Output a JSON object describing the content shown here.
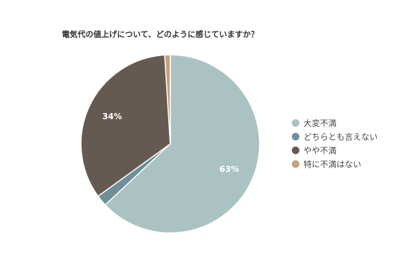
{
  "chart_data": {
    "type": "pie",
    "title": "電気代の値上げについて、どのように感じていますか？",
    "series": [
      {
        "name": "",
        "values": [
          {
            "label": "大変不満",
            "value": 63,
            "color": "#aac2c2",
            "data_label": "63%"
          },
          {
            "label": "どちらとも言えない",
            "value": 2,
            "color": "#6e8f98",
            "data_label": ""
          },
          {
            "label": "やや不満",
            "value": 34,
            "color": "#655a51",
            "data_label": "34%"
          },
          {
            "label": "特に不満はない",
            "value": 1,
            "color": "#c8a07a",
            "data_label": ""
          }
        ]
      }
    ],
    "legend_position": "right"
  }
}
